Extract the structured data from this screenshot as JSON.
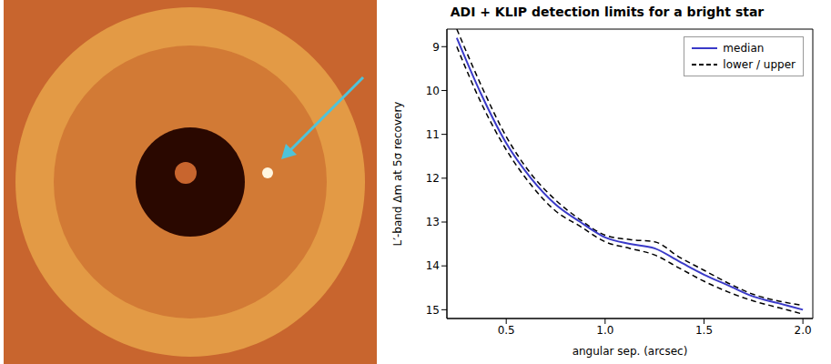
{
  "chart_data": {
    "type": "line",
    "title": "ADI + KLIP detection limits for a bright star",
    "x_label": "angular sep. (arcsec)",
    "y_label": "L′-band Δm at 5σ recovery",
    "x": [
      0.25,
      0.375,
      0.5,
      0.625,
      0.75,
      0.875,
      1.0,
      1.125,
      1.25,
      1.375,
      1.5,
      1.625,
      1.75,
      1.875,
      2.0
    ],
    "series": [
      {
        "name": "median",
        "color": "#3a3ac8",
        "line_style": "solid",
        "values": [
          8.8,
          10.1,
          11.2,
          12.0,
          12.6,
          13.0,
          13.35,
          13.5,
          13.6,
          13.9,
          14.2,
          14.45,
          14.7,
          14.85,
          15.0
        ]
      },
      {
        "name": "lower / upper",
        "color": "#000000",
        "line_style": "dashed",
        "lower": [
          8.6,
          9.9,
          11.05,
          11.9,
          12.5,
          12.95,
          13.3,
          13.4,
          13.45,
          13.8,
          14.1,
          14.4,
          14.65,
          14.8,
          14.9
        ],
        "upper": [
          9.0,
          10.3,
          11.35,
          12.15,
          12.75,
          13.1,
          13.45,
          13.6,
          13.75,
          14.05,
          14.35,
          14.6,
          14.8,
          14.95,
          15.1
        ]
      }
    ],
    "xlim": [
      0.2,
      2.05
    ],
    "xticks": [
      {
        "value": 0.5,
        "label": "0.5"
      },
      {
        "value": 1.0,
        "label": "1.0"
      },
      {
        "value": 1.5,
        "label": "1.5"
      },
      {
        "value": 2.0,
        "label": "2.0"
      }
    ],
    "ylim": [
      15.2,
      8.6
    ],
    "yticks": [
      9,
      10,
      11,
      12,
      13,
      14,
      15
    ],
    "legend": "upper right",
    "grid": false
  }
}
